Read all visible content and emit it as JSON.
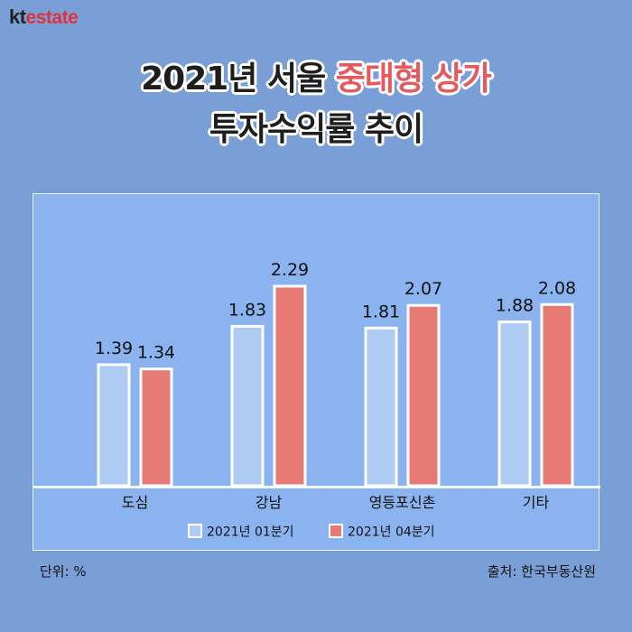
{
  "brand": {
    "kt": "kt",
    "estate": "estate"
  },
  "title": {
    "line1_prefix": "2021년 서울 ",
    "line1_highlight": "중대형 상가",
    "line2": "투자수익률 추이"
  },
  "footer": {
    "unit": "단위: %",
    "source": "출처: 한국부동산원"
  },
  "colors": {
    "series1": "#aecbf3",
    "series2": "#e87a76",
    "bar_border": "#ffffff"
  },
  "chart_data": {
    "type": "bar",
    "title": "2021년 서울 중대형 상가 투자수익률 추이",
    "categories": [
      "도심",
      "강남",
      "영등포신촌",
      "기타"
    ],
    "series": [
      {
        "name": "2021년 01분기",
        "values": [
          1.39,
          1.83,
          1.81,
          1.88
        ]
      },
      {
        "name": "2021년 04분기",
        "values": [
          1.34,
          2.29,
          2.07,
          2.08
        ]
      }
    ],
    "ylim": [
      0,
      2.5
    ],
    "grid": false,
    "legend": "bottom"
  }
}
